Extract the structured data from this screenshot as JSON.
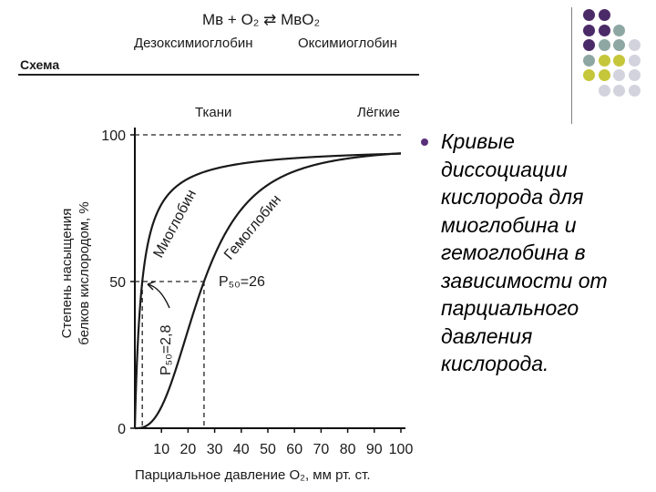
{
  "header": {
    "equation": "Mв + O₂ ⇄ MвO₂",
    "deoxy_label": "Дезоксимиоглобин",
    "oxy_label": "Оксимиоглобин",
    "scheme_label": "Схема"
  },
  "bullet": {
    "text": "Кривые\nдиссоциации\nкислорода для\nмиоглобина и\nгемоглобина в\nзависимости от\nпарциального\nдавления\nкислорода."
  },
  "chart_data": {
    "type": "line",
    "top_labels": [
      "Ткани",
      "Лёгкие"
    ],
    "xlabel": "Парциальное давление O₂, мм рт. ст.",
    "ylabel_lines": [
      "Степень насыщения",
      "белков кислородом, %"
    ],
    "xlim": [
      0,
      100
    ],
    "ylim": [
      0,
      100
    ],
    "x_ticks": [
      10,
      20,
      30,
      40,
      50,
      60,
      70,
      80,
      90,
      100
    ],
    "y_ticks": [
      0,
      50,
      100
    ],
    "series": [
      {
        "name": "Миоглобин",
        "color": "#1a1a1a",
        "p50": 2.8,
        "model": "hyperbolic",
        "x": [
          0,
          1,
          2,
          2.8,
          5,
          10,
          20,
          30,
          40,
          60,
          80,
          100
        ],
        "y": [
          0,
          26,
          42,
          50,
          64,
          78,
          88,
          91,
          93,
          95,
          96,
          96
        ]
      },
      {
        "name": "Гемоглобин",
        "color": "#1a1a1a",
        "p50": 26,
        "model": "sigmoidal",
        "x": [
          0,
          10,
          20,
          26,
          30,
          40,
          50,
          60,
          70,
          80,
          90,
          100
        ],
        "y": [
          0,
          8,
          32,
          50,
          60,
          76,
          86,
          91,
          94,
          95,
          96,
          96
        ]
      }
    ],
    "annotations": [
      {
        "text": "P₅₀=2,8",
        "x": 2.8,
        "y": 50
      },
      {
        "text": "P₅₀=26",
        "x": 26,
        "y": 50
      }
    ],
    "reference_lines": [
      {
        "orientation": "horizontal",
        "y": 100,
        "style": "dashed"
      },
      {
        "orientation": "horizontal",
        "y": 50,
        "style": "dashed"
      },
      {
        "orientation": "vertical",
        "x": 2.8,
        "style": "dashed"
      },
      {
        "orientation": "vertical",
        "x": 26,
        "style": "dashed"
      }
    ]
  },
  "decor": {
    "dot_colors": [
      "#4b2a68",
      "#8fa7a3",
      "#c6c63a",
      "#d3d3de"
    ]
  }
}
